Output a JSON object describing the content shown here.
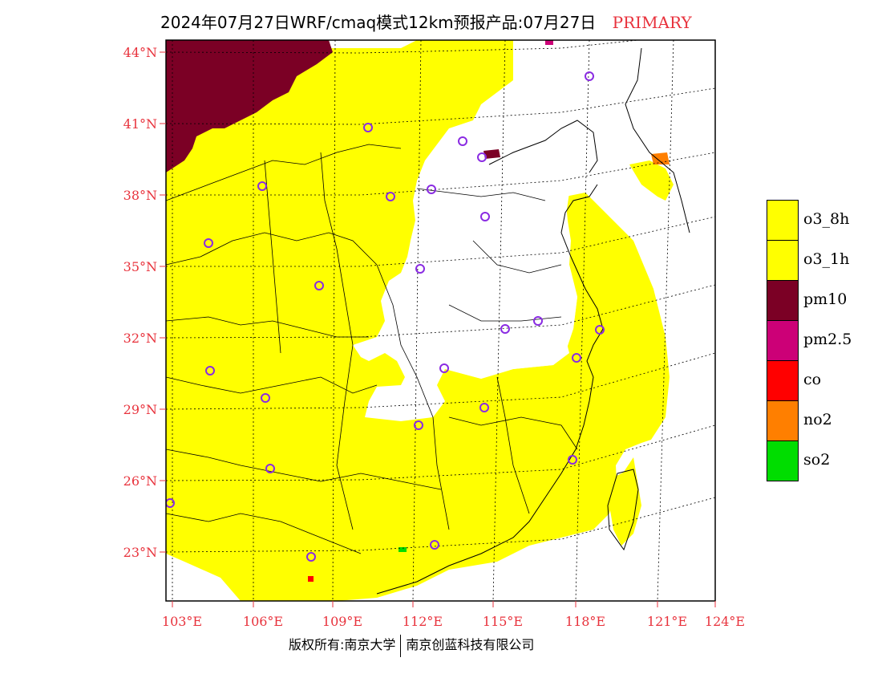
{
  "title": {
    "main": "2024年07月27日WRF/cmaq模式12km预报产品:07月27日",
    "tag": "PRIMARY"
  },
  "lat_labels": [
    "44°N",
    "41°N",
    "38°N",
    "35°N",
    "32°N",
    "29°N",
    "26°N",
    "23°N"
  ],
  "lon_labels": [
    "103°E",
    "106°E",
    "109°E",
    "112°E",
    "115°E",
    "118°E",
    "121°E",
    "124°E"
  ],
  "legend": [
    {
      "label": "o3_8h",
      "color": "#ffff00"
    },
    {
      "label": "o3_1h",
      "color": "#ffff00"
    },
    {
      "label": "pm10",
      "color": "#7b0025"
    },
    {
      "label": "pm2.5",
      "color": "#cc0077"
    },
    {
      "label": "co",
      "color": "#ff0000"
    },
    {
      "label": "no2",
      "color": "#ff7f00"
    },
    {
      "label": "so2",
      "color": "#00dd00"
    }
  ],
  "footer": {
    "left": "版权所有:南京大学",
    "right": "南京创蓝科技有限公司"
  },
  "colors": {
    "label_red": "#e8323c",
    "o3": "#ffff00",
    "pm10": "#7b0025",
    "pm25": "#cc0077",
    "no2": "#ff7f00",
    "so2": "#00dd00",
    "co": "#ff0000",
    "station_marker": "#8a2be2"
  }
}
